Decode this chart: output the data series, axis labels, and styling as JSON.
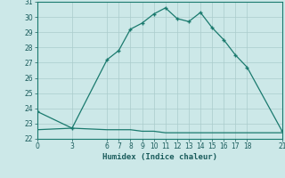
{
  "xlabel": "Humidex (Indice chaleur)",
  "line1_x": [
    0,
    3,
    6,
    7,
    8,
    9,
    10,
    11,
    12,
    13,
    14,
    15,
    16,
    17,
    18,
    21
  ],
  "line1_y": [
    23.8,
    22.7,
    27.2,
    27.8,
    29.2,
    29.6,
    30.2,
    30.6,
    29.9,
    29.7,
    30.3,
    29.3,
    28.5,
    27.5,
    26.7,
    22.5
  ],
  "line2_x": [
    0,
    3,
    6,
    7,
    8,
    9,
    10,
    11,
    12,
    13,
    14,
    15,
    16,
    17,
    18,
    21
  ],
  "line2_y": [
    22.6,
    22.7,
    22.6,
    22.6,
    22.6,
    22.5,
    22.5,
    22.4,
    22.4,
    22.4,
    22.4,
    22.4,
    22.4,
    22.4,
    22.4,
    22.4
  ],
  "line_color": "#1a7a6e",
  "bg_color": "#cce8e8",
  "grid_color": "#aacccc",
  "text_color": "#1a5c5c",
  "ylim": [
    22,
    31
  ],
  "yticks": [
    22,
    23,
    24,
    25,
    26,
    27,
    28,
    29,
    30,
    31
  ],
  "xticks": [
    0,
    3,
    6,
    7,
    8,
    9,
    10,
    11,
    12,
    13,
    14,
    15,
    16,
    17,
    18,
    21
  ],
  "marker": "+"
}
